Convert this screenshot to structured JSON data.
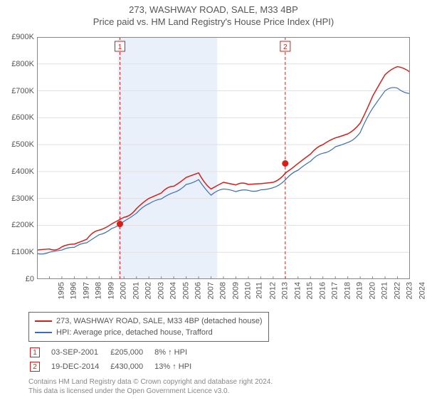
{
  "title": "273, WASHWAY ROAD, SALE, M33 4BP",
  "subtitle": "Price paid vs. HM Land Registry's House Price Index (HPI)",
  "chart": {
    "type": "line",
    "background_color": "#ffffff",
    "grid_color": "#e0e0e0",
    "highlight_band_color": "#eaf0fa",
    "x_range": [
      1995,
      2025
    ],
    "y_range": [
      0,
      900
    ],
    "y_unit_prefix": "£",
    "y_unit_suffix": "K",
    "y_tick_step": 100,
    "y_ticks": [
      "£0",
      "£100K",
      "£200K",
      "£300K",
      "£400K",
      "£500K",
      "£600K",
      "£700K",
      "£800K",
      "£900K"
    ],
    "x_ticks": [
      "1995",
      "1996",
      "1997",
      "1998",
      "1999",
      "2000",
      "2001",
      "2002",
      "2003",
      "2004",
      "2005",
      "2006",
      "2007",
      "2008",
      "2009",
      "2010",
      "2011",
      "2012",
      "2013",
      "2014",
      "2015",
      "2016",
      "2017",
      "2018",
      "2019",
      "2020",
      "2021",
      "2022",
      "2023",
      "2024"
    ],
    "first_x_tick_value": 1995,
    "series": [
      {
        "id": "property",
        "label": "273, WASHWAY ROAD, SALE, M33 4BP (detached house)",
        "color": "#d91e18",
        "line_width": 1.5,
        "values_yearly": [
          108,
          112,
          120,
          130,
          148,
          182,
          205,
          230,
          262,
          300,
          320,
          345,
          378,
          395,
          335,
          360,
          350,
          352,
          355,
          360,
          395,
          430,
          465,
          500,
          525,
          540,
          580,
          680,
          760,
          790,
          770
        ]
      },
      {
        "id": "hpi",
        "label": "HPI: Average price, detached house, Trafford",
        "color": "#3b6db5",
        "line_width": 1.2,
        "values_yearly": [
          95,
          100,
          108,
          118,
          135,
          165,
          188,
          215,
          245,
          280,
          298,
          322,
          352,
          370,
          312,
          335,
          325,
          330,
          332,
          340,
          370,
          405,
          438,
          468,
          492,
          508,
          545,
          635,
          700,
          710,
          690
        ]
      }
    ],
    "sale_markers": [
      {
        "index": 1,
        "x": 2001.67,
        "y_k": 205,
        "color": "#d91e18"
      },
      {
        "index": 2,
        "x": 2014.97,
        "y_k": 430,
        "color": "#d91e18"
      }
    ],
    "highlight_band_x": [
      2001.5,
      2009.5
    ]
  },
  "legend": {
    "border_color": "#666666",
    "items": [
      {
        "color": "#d91e18",
        "label_ref": "chart.series.0.label"
      },
      {
        "color": "#3b6db5",
        "label_ref": "chart.series.1.label"
      }
    ]
  },
  "sales_table": {
    "rows": [
      {
        "marker": "1",
        "marker_color": "#d91e18",
        "date": "03-SEP-2001",
        "price": "£205,000",
        "delta": "8% ↑ HPI"
      },
      {
        "marker": "2",
        "marker_color": "#d91e18",
        "date": "19-DEC-2014",
        "price": "£430,000",
        "delta": "13% ↑ HPI"
      }
    ]
  },
  "footer_line1": "Contains HM Land Registry data © Crown copyright and database right 2024.",
  "footer_line2": "This data is licensed under the Open Government Licence v3.0."
}
